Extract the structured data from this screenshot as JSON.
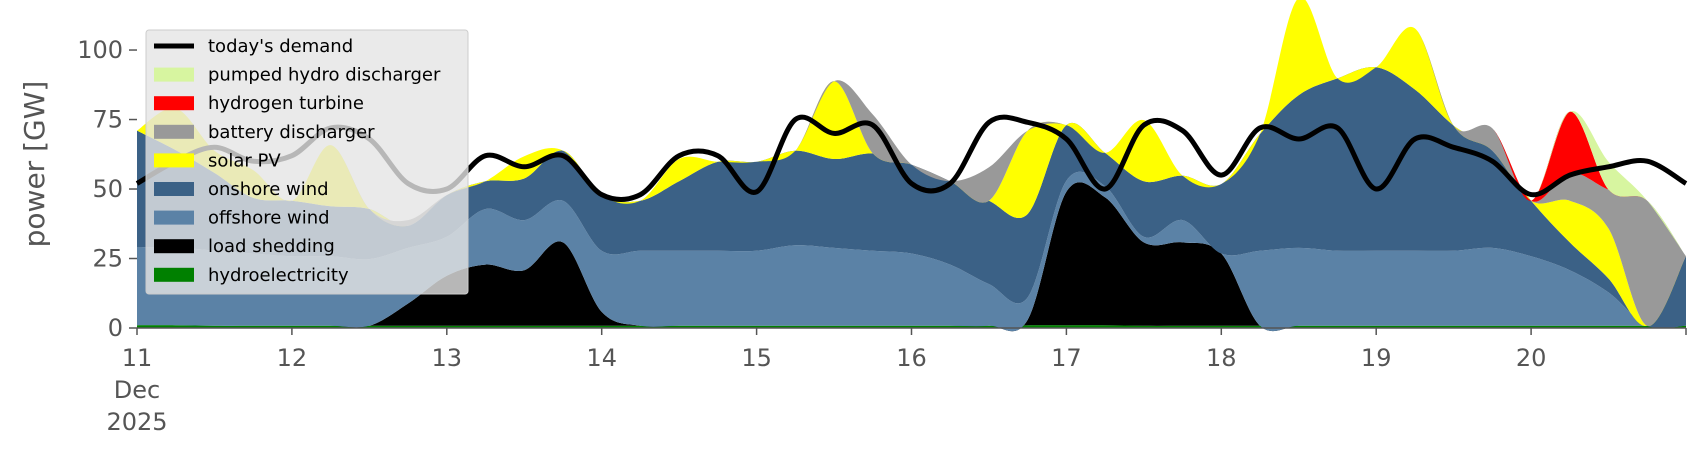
{
  "chart_data": {
    "type": "area",
    "title": "",
    "xlabel": "",
    "ylabel": "power [GW]",
    "ylim": [
      0,
      118
    ],
    "xlim": [
      0,
      240
    ],
    "y_ticks": [
      0,
      25,
      50,
      75,
      100
    ],
    "x_ticks": [
      {
        "hour": 0,
        "lines": [
          "11",
          "Dec",
          "2025"
        ]
      },
      {
        "hour": 24,
        "lines": [
          "12"
        ]
      },
      {
        "hour": 48,
        "lines": [
          "13"
        ]
      },
      {
        "hour": 72,
        "lines": [
          "14"
        ]
      },
      {
        "hour": 96,
        "lines": [
          "15"
        ]
      },
      {
        "hour": 120,
        "lines": [
          "16"
        ]
      },
      {
        "hour": 144,
        "lines": [
          "17"
        ]
      },
      {
        "hour": 168,
        "lines": [
          "18"
        ]
      },
      {
        "hour": 192,
        "lines": [
          "19"
        ]
      },
      {
        "hour": 216,
        "lines": [
          "20"
        ]
      }
    ],
    "grid": false,
    "legend_position": "top-left",
    "stack_order": [
      "hydroelectricity",
      "load shedding",
      "offshore wind",
      "onshore wind",
      "solar PV",
      "battery discharger",
      "hydrogen turbine",
      "pumped hydro discharger"
    ],
    "x": [
      0,
      6,
      12,
      18,
      24,
      30,
      36,
      42,
      48,
      54,
      60,
      66,
      72,
      78,
      84,
      90,
      96,
      102,
      108,
      114,
      120,
      126,
      132,
      138,
      144,
      150,
      156,
      162,
      168,
      174,
      180,
      186,
      192,
      198,
      204,
      210,
      216,
      222,
      228,
      234,
      240
    ],
    "series": [
      {
        "name": "hydroelectricity",
        "color": "#008000",
        "values": [
          1,
          1,
          0.8,
          0.8,
          0.8,
          0.8,
          0.8,
          0.8,
          0.8,
          0.8,
          0.8,
          0.8,
          0.8,
          0.8,
          0.8,
          0.8,
          0.8,
          0.8,
          0.8,
          0.8,
          0.8,
          0.8,
          0.8,
          1,
          1,
          1,
          0.8,
          0.8,
          0.8,
          0.8,
          0.8,
          0.8,
          0.8,
          0.8,
          0.8,
          0.8,
          0.8,
          0.8,
          0.8,
          0.8,
          0.8
        ]
      },
      {
        "name": "load shedding",
        "color": "#000000",
        "values": [
          0,
          0,
          0,
          0,
          0,
          0,
          0,
          8,
          18,
          22,
          20,
          30,
          5,
          0,
          0,
          0,
          0,
          0,
          0,
          0,
          0,
          0,
          0,
          2,
          48,
          46,
          30,
          30,
          26,
          0,
          0,
          0,
          0,
          0,
          0,
          0,
          0,
          0,
          0,
          0,
          0
        ]
      },
      {
        "name": "offshore wind",
        "color": "#5b82a6",
        "values": [
          28,
          28,
          27,
          26,
          25,
          25,
          24,
          20,
          14,
          20,
          18,
          15,
          22,
          27,
          27,
          27,
          27,
          29,
          28,
          27,
          26,
          22,
          15,
          8,
          4,
          4,
          2,
          8,
          0,
          27,
          28,
          27,
          27,
          27,
          27,
          28,
          25,
          20,
          12,
          0,
          0
        ]
      },
      {
        "name": "onshore wind",
        "color": "#3b6186",
        "values": [
          42,
          35,
          28,
          20,
          20,
          18,
          18,
          8,
          15,
          10,
          15,
          18,
          20,
          18,
          25,
          32,
          32,
          34,
          32,
          35,
          32,
          30,
          30,
          30,
          20,
          12,
          20,
          16,
          25,
          42,
          55,
          62,
          66,
          58,
          45,
          35,
          20,
          10,
          5,
          0,
          25
        ]
      },
      {
        "name": "solar PV",
        "color": "#ffff00",
        "values": [
          0,
          15,
          8,
          10,
          0,
          22,
          0,
          0,
          0,
          0,
          8,
          0,
          0,
          0,
          8,
          0,
          0,
          0,
          28,
          0,
          0,
          0,
          0,
          30,
          0,
          0,
          22,
          0,
          0,
          0,
          35,
          0,
          0,
          22,
          0,
          0,
          0,
          15,
          18,
          0,
          0
        ]
      },
      {
        "name": "battery discharger",
        "color": "#999999",
        "values": [
          0,
          0,
          0,
          0,
          0,
          0,
          0,
          2,
          0,
          0,
          0,
          0,
          0,
          0,
          0,
          0,
          0,
          0,
          0,
          14,
          0,
          0,
          12,
          0,
          0,
          0,
          0,
          0,
          0,
          0,
          0,
          0,
          0,
          0,
          0,
          8,
          0,
          10,
          14,
          45,
          0
        ]
      },
      {
        "name": "hydrogen turbine",
        "color": "#ff0000",
        "values": [
          0,
          0,
          0,
          0,
          0,
          0,
          0,
          0,
          0,
          0,
          0,
          0,
          0,
          0,
          0,
          0,
          0,
          0,
          0,
          0,
          0,
          0,
          0,
          0,
          0,
          0,
          0,
          0,
          0,
          0,
          0,
          0,
          0,
          0,
          0,
          0,
          0,
          22,
          0,
          0,
          0
        ]
      },
      {
        "name": "pumped hydro discharger",
        "color": "#d7f5a0",
        "values": [
          0,
          0,
          0,
          0,
          0,
          0,
          0,
          0,
          0,
          0,
          0,
          0,
          0,
          0,
          0,
          0,
          0,
          0,
          0,
          0,
          0,
          0,
          0,
          0,
          0,
          0,
          0,
          0,
          0,
          0,
          0,
          0,
          0,
          0,
          0,
          0,
          0,
          0,
          10,
          0,
          0
        ]
      },
      {
        "name": "today's demand",
        "color": "#000000",
        "type": "line",
        "values": [
          52,
          60,
          65,
          60,
          62,
          72,
          68,
          52,
          50,
          62,
          58,
          62,
          48,
          48,
          62,
          62,
          49,
          75,
          70,
          73,
          52,
          52,
          74,
          74,
          68,
          50,
          73,
          71,
          55,
          72,
          68,
          72,
          50,
          68,
          65,
          60,
          48,
          55,
          58,
          60,
          52
        ]
      }
    ],
    "legend": [
      "today's demand",
      "pumped hydro discharger",
      "hydrogen turbine",
      "battery discharger",
      "solar PV",
      "onshore wind",
      "offshore wind",
      "load shedding",
      "hydroelectricity"
    ]
  }
}
